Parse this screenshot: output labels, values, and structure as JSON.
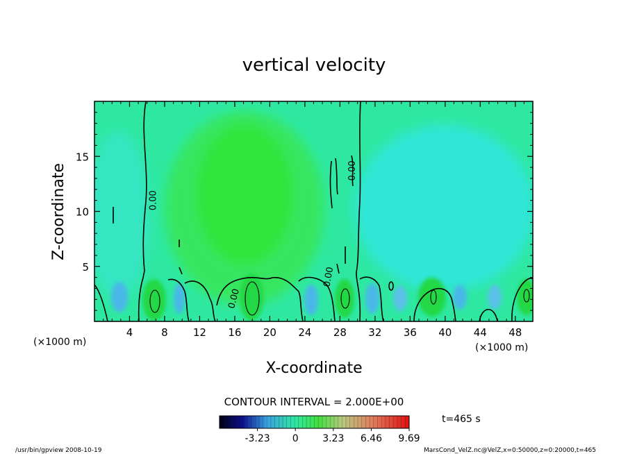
{
  "chart_data": {
    "type": "heatmap",
    "title": "vertical velocity",
    "xlabel": "X-coordinate",
    "ylabel": "Z-coordinate",
    "x_unit_left": "(×1000 m)",
    "x_unit_right": "(×1000 m)",
    "xlim": [
      0,
      50
    ],
    "ylim": [
      0,
      20
    ],
    "xticks": [
      4,
      8,
      12,
      16,
      20,
      24,
      28,
      32,
      36,
      40,
      44,
      48
    ],
    "yticks": [
      5,
      10,
      15
    ],
    "contour_interval_text": "CONTOUR INTERVAL = 2.000E+00",
    "contour_labels": [
      {
        "text": "0.00",
        "x": 7.0,
        "y": 11.0,
        "angle": -90
      },
      {
        "text": "0.00",
        "x": 29.7,
        "y": 13.7,
        "angle": -90
      },
      {
        "text": "0.00",
        "x": 16.2,
        "y": 2.0,
        "angle": -75
      },
      {
        "text": "0.00",
        "x": 27.0,
        "y": 4.0,
        "angle": -80
      }
    ],
    "colorbar": {
      "range": [
        -6.46,
        9.69
      ],
      "ticks": [
        "-3.23",
        "0",
        "3.23",
        "6.46",
        "9.69"
      ],
      "tick_values": [
        -3.23,
        0,
        3.23,
        6.46,
        9.69
      ]
    },
    "time_label": "t=465 s"
  },
  "footer": {
    "left": "/usr/bin/gpview  2008-10-19",
    "right": "MarsCond_VelZ.nc@VelZ,x=0:50000,z=0:20000,t=465"
  },
  "colors": {
    "background_field": "#2ee8a2",
    "updraft": "#28e628",
    "downdraft": "#28e6e8",
    "contour": "#000000"
  }
}
